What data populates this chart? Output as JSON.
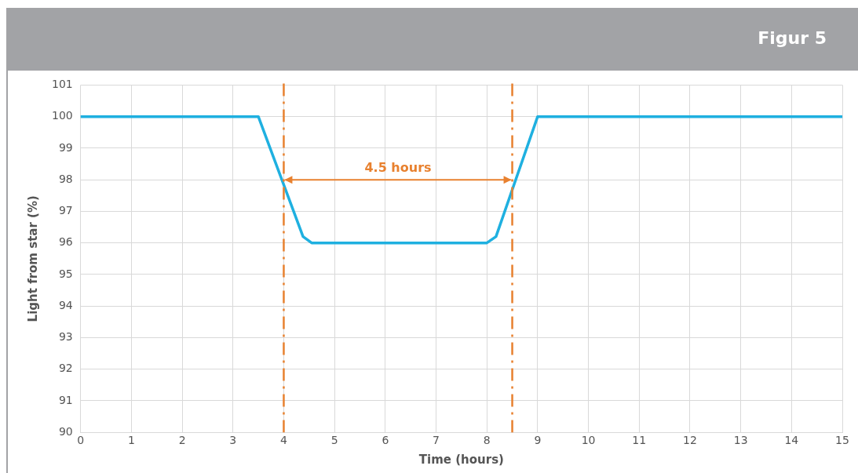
{
  "chart_data": {
    "type": "line",
    "title": "Figur 5",
    "xlabel": "Time (hours)",
    "ylabel": "Light from star (%)",
    "series": [
      {
        "color": "#1fb0e0",
        "x": [
          0,
          3.5,
          4.38,
          4.55,
          8,
          8.18,
          9,
          15
        ],
        "values": [
          100,
          100,
          96.2,
          96,
          96,
          96.2,
          100,
          100
        ]
      }
    ],
    "xlim": [
      0,
      15
    ],
    "xticks": [
      0,
      1,
      2,
      3,
      4,
      5,
      6,
      7,
      8,
      9,
      10,
      11,
      12,
      13,
      14,
      15
    ],
    "ylim": [
      90,
      101
    ],
    "yticks": [
      90,
      91,
      92,
      93,
      94,
      95,
      96,
      97,
      98,
      99,
      100,
      101
    ],
    "grid": true,
    "legend": false,
    "marker": "none",
    "line_style": "solid",
    "ref_lines": [
      {
        "axis": "x",
        "value": 4,
        "color": "#e8812f",
        "line_style": "dashed"
      },
      {
        "axis": "x",
        "value": 8.5,
        "color": "#e8812f",
        "line_style": "dashed"
      }
    ],
    "annotations": [
      "4.5 hours"
    ]
  }
}
